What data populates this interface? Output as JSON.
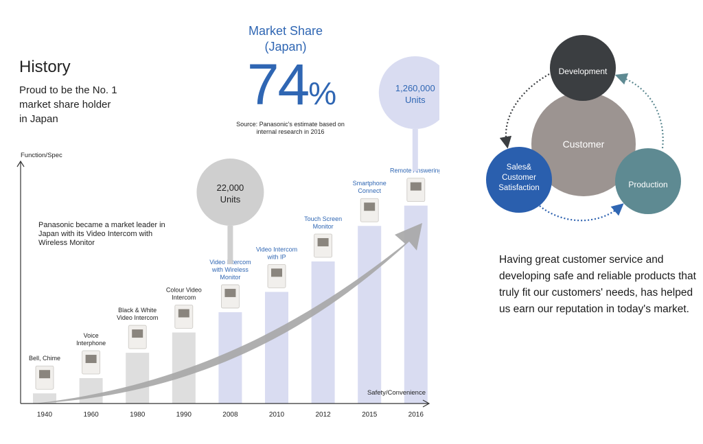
{
  "history": {
    "title": "History",
    "subtitle": "Proud to be the No. 1\nmarket share holder\nin Japan"
  },
  "market_share": {
    "label": "Market Share\n(Japan)",
    "value": "74",
    "unit": "%",
    "source": "Source: Panasonic's estimate based on\ninternal research in 2016"
  },
  "callout_note": "Panasonic became a market leader in Japan with its Video Intercom with Wireless Monitor",
  "reputation_text": "Having great customer service and developing safe and reliable products that truly fit our customers' needs, has helped us earn our reputation in today's market.",
  "cycle": {
    "center": "Customer",
    "nodes": [
      "Development",
      "Sales&\nCustomer\nSatisfaction",
      "Production"
    ]
  },
  "colors": {
    "blue": "#2f66b3",
    "bar_gray": "#dedede",
    "bar_lavender": "#d9dcf1",
    "bubble_gray": "#cfcfcf",
    "dark_circle": "#3b3e41",
    "center_circle": "#9c9491",
    "sales_circle": "#2a5fae",
    "production_circle": "#5e8a92"
  },
  "chart_data": {
    "type": "bar",
    "title": "",
    "xlabel": "Safety/Convenience",
    "ylabel": "Function/Spec",
    "categories": [
      "1940",
      "1960",
      "1980",
      "1990",
      "2008",
      "2010",
      "2012",
      "2015",
      "2016"
    ],
    "values": [
      1,
      2.5,
      5,
      7,
      9,
      11,
      14,
      17.5,
      19.5
    ],
    "ylim": [
      0,
      24
    ],
    "bar_labels": [
      "Bell, Chime",
      "Voice\nInterphone",
      "Black & White\nVideo Intercom",
      "Colour Video\nIntercom",
      "Video Intercom\nwith Wireless\nMonitor",
      "Video Intercom\nwith IP",
      "Touch Screen\nMonitor",
      "Smartphone\nConnect",
      "Remote Answering"
    ],
    "bar_colors": [
      "gray",
      "gray",
      "gray",
      "gray",
      "lavender",
      "lavender",
      "lavender",
      "lavender",
      "lavender"
    ],
    "annotations": [
      {
        "category": "2008",
        "text": "22,000\nUnits"
      },
      {
        "category": "2016",
        "text": "1,260,000\nUnits"
      }
    ],
    "grid": false,
    "legend": "none"
  }
}
